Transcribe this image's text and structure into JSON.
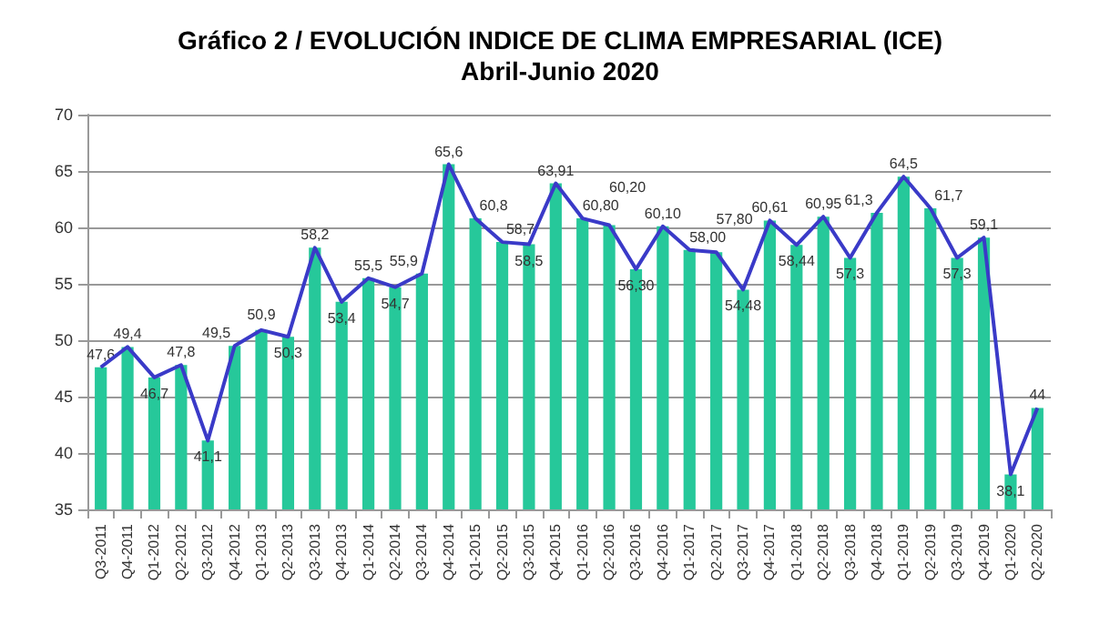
{
  "chart_data": {
    "type": "bar",
    "title": "Gráfico 2 / EVOLUCIÓN INDICE DE CLIMA EMPRESARIAL (ICE)",
    "subtitle": "Abril-Junio 2020",
    "categories": [
      "Q3-2011",
      "Q4-2011",
      "Q1-2012",
      "Q2-2012",
      "Q3-2012",
      "Q4-2012",
      "Q1-2013",
      "Q2-2013",
      "Q3-2013",
      "Q4-2013",
      "Q1-2014",
      "Q2-2014",
      "Q3-2014",
      "Q4-2014",
      "Q1-2015",
      "Q2-2015",
      "Q3-2015",
      "Q4-2015",
      "Q1-2016",
      "Q2-2016",
      "Q3-2016",
      "Q4-2016",
      "Q1-2017",
      "Q2-2017",
      "Q3-2017",
      "Q4-2017",
      "Q1-2018",
      "Q2-2018",
      "Q3-2018",
      "Q4-2018",
      "Q1-2019",
      "Q2-2019",
      "Q3-2019",
      "Q4-2019",
      "Q1-2020",
      "Q2-2020"
    ],
    "series": [
      {
        "color": "#26c89a",
        "values": [
          47.6,
          49.4,
          46.7,
          47.8,
          41.1,
          49.5,
          50.9,
          50.3,
          58.2,
          53.4,
          55.5,
          54.7,
          55.9,
          65.6,
          60.8,
          58.7,
          58.5,
          63.91,
          60.8,
          60.2,
          56.3,
          60.1,
          58.0,
          57.8,
          54.48,
          60.61,
          58.44,
          60.95,
          57.3,
          61.3,
          64.5,
          61.7,
          57.3,
          59.1,
          38.1,
          44
        ],
        "value_labels": [
          "47,6",
          "49,4",
          "46,7",
          "47,8",
          "41,1",
          "49,5",
          "50,9",
          "50,3",
          "58,2",
          "53,4",
          "55,5",
          "54,7",
          "55,9",
          "65,6",
          "60,8",
          "58,7",
          "58,5",
          "63,91",
          "60,80",
          "60,20",
          "56,30",
          "60,10",
          "58,00",
          "57,80",
          "54,48",
          "60,61",
          "58,44",
          "60,95",
          "57,3",
          "61,3",
          "64,5",
          "61,7",
          "57,3",
          "59,1",
          "38,1",
          "44"
        ]
      },
      {
        "type": "line",
        "color": "#3a3ac8",
        "values": [
          47.6,
          49.4,
          46.7,
          47.8,
          41.1,
          49.5,
          50.9,
          50.3,
          58.2,
          53.4,
          55.5,
          54.7,
          55.9,
          65.6,
          60.8,
          58.7,
          58.5,
          63.91,
          60.8,
          60.2,
          56.3,
          60.1,
          58.0,
          57.8,
          54.48,
          60.61,
          58.44,
          60.95,
          57.3,
          61.3,
          64.5,
          61.7,
          57.3,
          59.1,
          38.1,
          44
        ]
      }
    ],
    "ylim": [
      35,
      70
    ],
    "yticks": [
      35,
      40,
      45,
      50,
      55,
      60,
      65,
      70
    ],
    "grid": "y",
    "line_style": "solid"
  }
}
